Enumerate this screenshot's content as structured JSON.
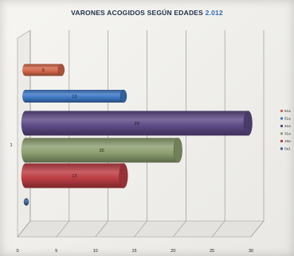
{
  "chart_data": {
    "type": "bar",
    "orientation": "horizontal",
    "style": "3d-cylinder",
    "title": "VARONES ACOGIDOS SEGÚN EDADES",
    "title_year": "2.012",
    "category": "1",
    "xlim": [
      0,
      30
    ],
    "xticks": [
      "0",
      "5",
      "10",
      "15",
      "20",
      "25",
      "30"
    ],
    "grid": true,
    "legend_position": "right",
    "series": [
      {
        "name": "61a",
        "value": 5,
        "label": "5",
        "color": "#d2674a"
      },
      {
        "name": "51a",
        "value": 13,
        "label": "13",
        "color": "#3e78c4"
      },
      {
        "name": "41a",
        "value": 29,
        "label": "29",
        "color": "#5d4a86"
      },
      {
        "name": "31a",
        "value": 20,
        "label": "20",
        "color": "#8ea071"
      },
      {
        "name": "18a",
        "value": 13,
        "label": "13",
        "color": "#bd3d44"
      },
      {
        "name": "0a1",
        "value": 0,
        "label": "",
        "color": "#3a5f94"
      }
    ]
  }
}
